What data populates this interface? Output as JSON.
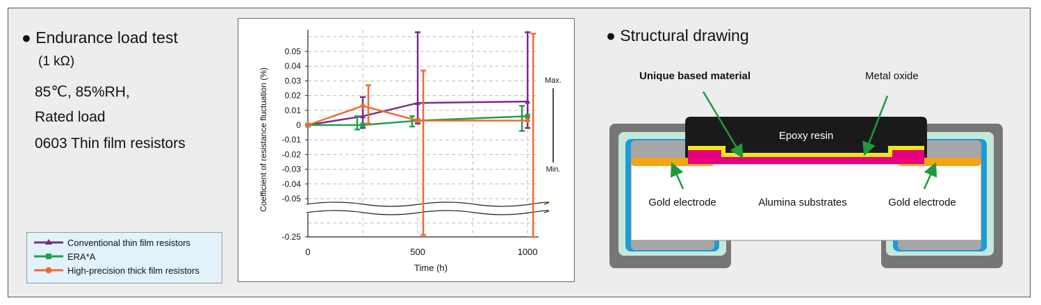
{
  "left_panel": {
    "heading": "● Endurance load test",
    "resistance": "(1 kΩ)",
    "conditions": [
      "85℃, 85%RH,",
      "Rated load",
      "0603 Thin film resistors"
    ]
  },
  "legend": {
    "items": [
      {
        "label": "Conventional thin film resistors",
        "color": "#7b2a8c",
        "marker": "triangle"
      },
      {
        "label": "ERA*A",
        "color": "#1ea04a",
        "marker": "square"
      },
      {
        "label": "High-precision thick film resistors",
        "color": "#f06a30",
        "marker": "circle"
      }
    ]
  },
  "chart_data": {
    "type": "line",
    "xlabel": "Time (h)",
    "ylabel": "Coefficient of resistance fluctuation (%)",
    "x_ticks": [
      "0",
      "500",
      "1000"
    ],
    "y_ticks": [
      "0.05",
      "0.04",
      "0.03",
      "0.02",
      "0.01",
      "0",
      "-0.01",
      "-0.02",
      "-0.03",
      "-0.04",
      "-0.05",
      "-0.25"
    ],
    "xlim": [
      0,
      1050
    ],
    "ylim_upper_segment": [
      -0.05,
      0.06
    ],
    "ylim_lower_segment": [
      -0.25,
      -0.05
    ],
    "axis_break": true,
    "grid": true,
    "range_indicator": {
      "max_label": "Max.",
      "min_label": "Min."
    },
    "series": [
      {
        "name": "Conventional thin film resistors",
        "color": "#7b2a8c",
        "x": [
          0,
          250,
          500,
          1000
        ],
        "y": [
          0,
          0.006,
          0.015,
          0.016
        ],
        "err_max": [
          0,
          0.019,
          0.063,
          0.063
        ],
        "err_min": [
          0,
          -0.002,
          0.001,
          -0.002
        ]
      },
      {
        "name": "ERA*A",
        "color": "#1ea04a",
        "x": [
          0,
          250,
          500,
          1000
        ],
        "y": [
          0,
          0,
          0.003,
          0.006
        ],
        "err_max": [
          0,
          0.006,
          0.006,
          0.013
        ],
        "err_min": [
          0,
          -0.003,
          -0.001,
          -0.004
        ]
      },
      {
        "name": "High-precision thick film resistors",
        "color": "#f06a30",
        "x": [
          0,
          250,
          500,
          1000
        ],
        "y": [
          0,
          0.013,
          0.003,
          0.003
        ],
        "err_max": [
          0,
          0.027,
          0.037,
          0.062
        ],
        "err_min": [
          0,
          0.001,
          -0.24,
          -0.25
        ]
      }
    ]
  },
  "structure": {
    "heading": "● Structural drawing",
    "labels": {
      "unique_material": "Unique based material",
      "metal_oxide": "Metal oxide",
      "epoxy": "Epoxy resin",
      "gold_left": "Gold electrode",
      "alumina": "Alumina substrates",
      "gold_right": "Gold electrode"
    },
    "colors": {
      "outer_frame": "#767676",
      "light_green": "#c5e8d8",
      "blue": "#1e9ad6",
      "gray_inner": "#a6a6a6",
      "gold": "#f5a41a",
      "magenta": "#e6007e",
      "yellow": "#f5e61a",
      "epoxy": "#1a1a1a",
      "arrow_green": "#1e9a3c"
    }
  }
}
